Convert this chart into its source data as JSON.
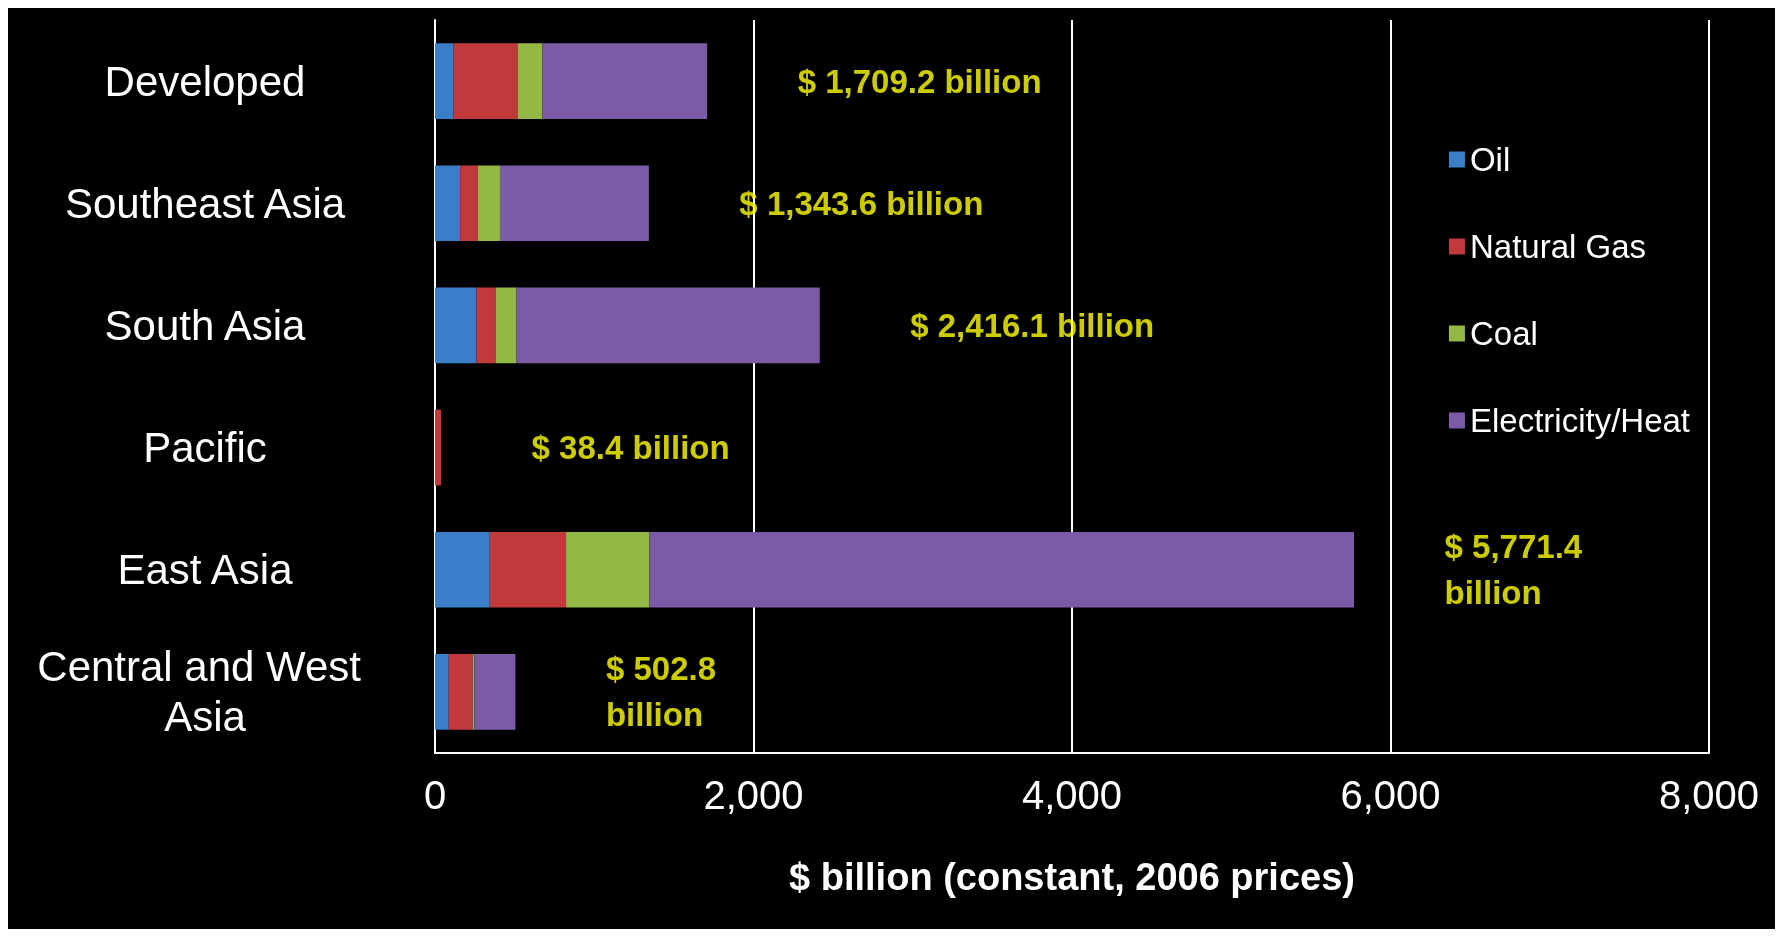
{
  "chart_data": {
    "type": "bar",
    "orientation": "horizontal",
    "stacked": true,
    "xlabel": "$ billion (constant, 2006 prices)",
    "categories": [
      "Developed",
      "Southeast Asia",
      "South Asia",
      "Pacific",
      "East Asia",
      "Central and West Asia"
    ],
    "series": [
      {
        "name": "Oil",
        "color": "#3a7dc9",
        "values": [
          116,
          158,
          260,
          null,
          344,
          86
        ]
      },
      {
        "name": "Natural Gas",
        "color": "#c0393b",
        "values": [
          403,
          111,
          122,
          38,
          479,
          151
        ]
      },
      {
        "name": "Coal",
        "color": "#93b845",
        "values": [
          155,
          139,
          130,
          null,
          523,
          10
        ]
      },
      {
        "name": "Electricity/Heat",
        "color": "#7b5ba6",
        "values": [
          1035,
          935,
          1904,
          null,
          4425,
          258
        ]
      }
    ],
    "xlim": [
      0,
      8000
    ],
    "xticks": [
      {
        "value": 0,
        "label": "0"
      },
      {
        "value": 2000,
        "label": "2,000"
      },
      {
        "value": 4000,
        "label": "4,000"
      },
      {
        "value": 6000,
        "label": "6,000"
      },
      {
        "value": 8000,
        "label": "8,000"
      }
    ],
    "grid": "x",
    "legend": "right",
    "annotations": [
      "$ 1,709.2 billion",
      "$ 1,343.6 billion",
      "$ 2,416.1 billion",
      "$ 38.4 billion",
      "$ 5,771.4\nbillion",
      "$ 502.8\nbillion"
    ]
  }
}
